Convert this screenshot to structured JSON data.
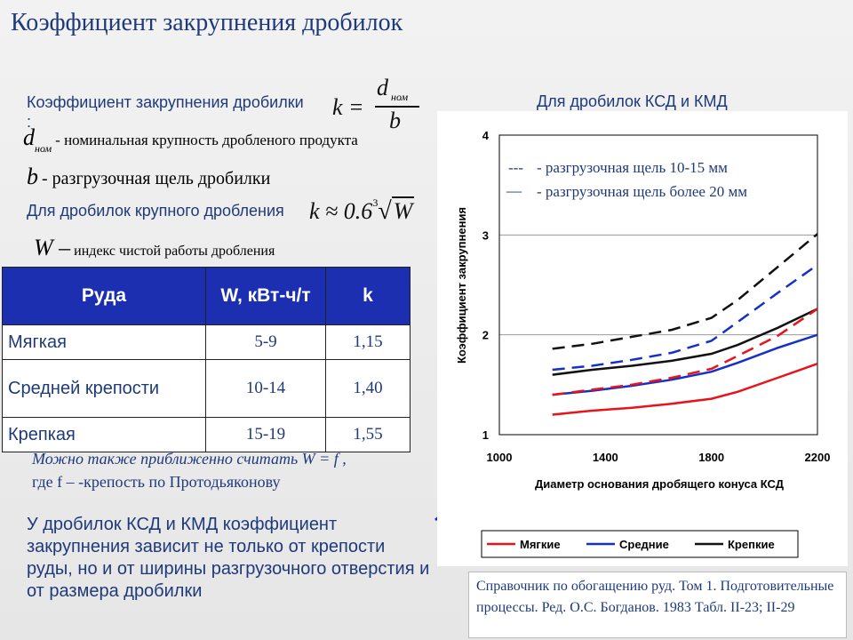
{
  "title": "Коэффициент закрупнения дробилок",
  "definition": {
    "label": "Коэффициент закрупнения дробилки :",
    "formula_lhs": "k =",
    "formula_num": "d",
    "formula_num_sub": "ном",
    "formula_den": "b",
    "d_sym": "d",
    "d_sub": "ном",
    "d_desc": "- номинальная крупность дробленого продукта",
    "b_sym": "b",
    "b_desc": "- разгрузочная щель дробилки"
  },
  "coarse": {
    "label": "Для дробилок крупного дробления",
    "formula_prefix": "k ≈ 0.6",
    "root_index": "3",
    "root_arg": "W",
    "w_sym": "W –",
    "w_desc": "индекс чистой работы дробления"
  },
  "table": {
    "headers": [
      "Руда",
      "W, кВт-ч/т",
      "k"
    ],
    "rows": [
      {
        "name": "Мягкая",
        "w": "5-9",
        "k": "1,15"
      },
      {
        "name": "Средней крепости",
        "w": "10-14",
        "k": "1,40"
      },
      {
        "name": "Крепкая",
        "w": "15-19",
        "k": "1,55"
      }
    ]
  },
  "approx_note": {
    "line1": "Можно также приближенно считать W = f ,",
    "line2": "где f – -крепость по Протодьяконову"
  },
  "bottom_note": "У дробилок КСД и КМД коэффициент закрупнения зависит не только от крепости руды, но и от ширины разгрузочного отверстия и от размера дробилки",
  "chart_heading": "Для дробилок КСД и КМД",
  "reference": "Справочник по обогащению руд. Том 1. Подготовительные процессы. Ред. О.С. Богданов. 1983 Табл. II-23; II-29",
  "colors": {
    "soft": "#e8141c",
    "medium": "#1530c8",
    "hard": "#111111",
    "heading": "#1f3a7a",
    "table_header": "#1b2fb0"
  },
  "chart_data": {
    "type": "line",
    "xlabel": "Диаметр основания дробящего конуса КСД",
    "ylabel": "Коэффициент закрупнения",
    "xlim": [
      1000,
      2200
    ],
    "ylim": [
      1,
      4
    ],
    "xticks": [
      "1000",
      "1400",
      "1800",
      "2200"
    ],
    "yticks": [
      "1",
      "2",
      "3",
      "4"
    ],
    "grid": true,
    "legend_lines": [
      {
        "symbol": "---",
        "text": "- разгрузочная щель 10-15 мм"
      },
      {
        "symbol": "—",
        "text": "- разгрузочная щель более 20 мм"
      }
    ],
    "legend": [
      "Мягкие",
      "Средние",
      "Крепкие"
    ],
    "series": [
      {
        "name": "Мягкие",
        "style": "solid",
        "color": "#e8141c",
        "x": [
          1200,
          1350,
          1500,
          1650,
          1800,
          1900,
          2050,
          2200
        ],
        "y": [
          1.2,
          1.24,
          1.27,
          1.31,
          1.36,
          1.43,
          1.57,
          1.71
        ]
      },
      {
        "name": "Средние",
        "style": "solid",
        "color": "#1530c8",
        "x": [
          1200,
          1350,
          1500,
          1650,
          1800,
          1900,
          2050,
          2200
        ],
        "y": [
          1.4,
          1.44,
          1.49,
          1.55,
          1.63,
          1.72,
          1.87,
          2.0
        ]
      },
      {
        "name": "Крепкие",
        "style": "solid",
        "color": "#111111",
        "x": [
          1200,
          1350,
          1500,
          1650,
          1800,
          1900,
          2050,
          2200
        ],
        "y": [
          1.6,
          1.65,
          1.69,
          1.74,
          1.81,
          1.9,
          2.07,
          2.26
        ]
      },
      {
        "name": "Мягкие",
        "style": "dashed",
        "color": "#e8141c",
        "x": [
          1200,
          1350,
          1500,
          1650,
          1800,
          1900,
          2050,
          2200
        ],
        "y": [
          1.4,
          1.45,
          1.5,
          1.57,
          1.66,
          1.79,
          1.99,
          2.26
        ]
      },
      {
        "name": "Средние",
        "style": "dashed",
        "color": "#1530c8",
        "x": [
          1200,
          1350,
          1500,
          1650,
          1800,
          1900,
          2050,
          2200
        ],
        "y": [
          1.65,
          1.69,
          1.75,
          1.82,
          1.94,
          2.13,
          2.42,
          2.7
        ]
      },
      {
        "name": "Крепкие",
        "style": "dashed",
        "color": "#111111",
        "x": [
          1200,
          1350,
          1500,
          1650,
          1800,
          1900,
          2050,
          2200
        ],
        "y": [
          1.86,
          1.91,
          1.98,
          2.05,
          2.17,
          2.35,
          2.68,
          3.01
        ]
      }
    ]
  }
}
